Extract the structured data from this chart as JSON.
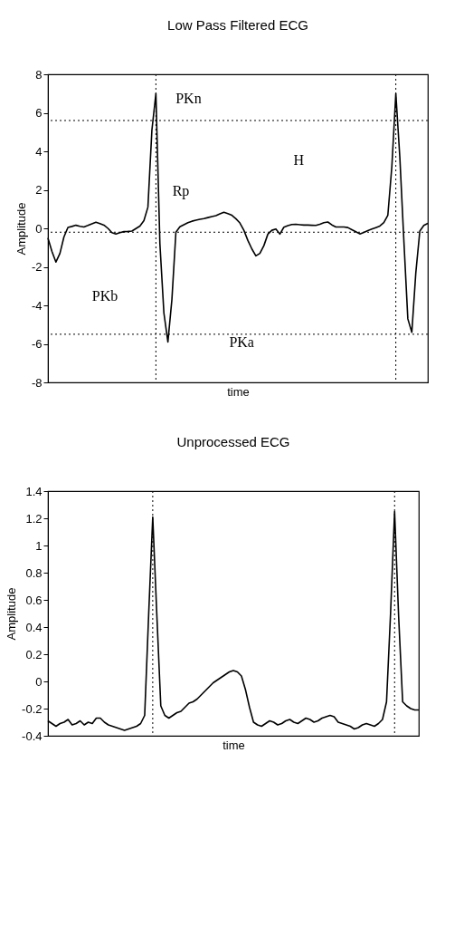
{
  "chart_data": [
    {
      "type": "line",
      "title": "Low Pass Filtered ECG",
      "xlabel": "time",
      "ylabel": "Amplitude",
      "tick_labels": "y",
      "grid": false,
      "marker": "none",
      "line_style": "solid",
      "categories": [
        null,
        null,
        null,
        null,
        null,
        null,
        null,
        null,
        null,
        null,
        null,
        null,
        null,
        null,
        null,
        null,
        null,
        null,
        null,
        null,
        null,
        null,
        null,
        null,
        null,
        null,
        null,
        null,
        null,
        null,
        null,
        null,
        null,
        null,
        null,
        null,
        null,
        null,
        null,
        null,
        null,
        null,
        null,
        null,
        null,
        null,
        null,
        null,
        null,
        null,
        null,
        null,
        null,
        null,
        null,
        null,
        null,
        null,
        null,
        null,
        null,
        null,
        null,
        null,
        null,
        null,
        null,
        null,
        null,
        null,
        null,
        null,
        null,
        null,
        null,
        null,
        null,
        null,
        null,
        null,
        null,
        null,
        null,
        null,
        null,
        null,
        null,
        null,
        null,
        null,
        null,
        null,
        null,
        null,
        null,
        null
      ],
      "ylim": [
        -8,
        8
      ],
      "yticks": [
        -8,
        -6,
        -4,
        -2,
        0,
        2,
        4,
        6,
        8
      ],
      "series": [
        {
          "color": "#000000",
          "values": [
            -0.5,
            -1.2,
            -1.75,
            -1.3,
            -0.45,
            0.05,
            0.1,
            0.16,
            0.11,
            0.07,
            0.15,
            0.24,
            0.32,
            0.25,
            0.17,
            0.0,
            -0.22,
            -0.29,
            -0.22,
            -0.17,
            -0.16,
            -0.14,
            -0.01,
            0.12,
            0.4,
            1.1,
            5.1,
            7.0,
            -0.8,
            -4.4,
            -5.9,
            -3.7,
            -0.2,
            0.08,
            0.19,
            0.29,
            0.37,
            0.42,
            0.47,
            0.51,
            0.56,
            0.61,
            0.66,
            0.75,
            0.83,
            0.76,
            0.68,
            0.5,
            0.28,
            -0.1,
            -0.63,
            -1.07,
            -1.43,
            -1.3,
            -0.9,
            -0.3,
            -0.1,
            -0.03,
            -0.3,
            0.06,
            0.14,
            0.2,
            0.21,
            0.19,
            0.17,
            0.17,
            0.16,
            0.15,
            0.21,
            0.29,
            0.33,
            0.18,
            0.07,
            0.07,
            0.07,
            0.04,
            -0.07,
            -0.18,
            -0.29,
            -0.21,
            -0.12,
            -0.04,
            0.04,
            0.12,
            0.3,
            0.68,
            3.2,
            7.0,
            3.7,
            -0.6,
            -4.7,
            -5.4,
            -2.3,
            -0.14,
            0.15,
            0.26
          ]
        }
      ],
      "ref_lines": [
        {
          "axis": "y",
          "value": 5.6,
          "line_style": "dotted"
        },
        {
          "axis": "y",
          "value": -0.2,
          "line_style": "dotted"
        },
        {
          "axis": "y",
          "value": -5.5,
          "line_style": "dotted"
        }
      ],
      "annotations": [
        "PKn",
        "Rp",
        "H",
        "PKb",
        "PKa"
      ]
    },
    {
      "type": "line",
      "title": "Unprocessed ECG",
      "xlabel": "time",
      "ylabel": "Amplitude",
      "tick_labels": "y",
      "grid": false,
      "marker": "none",
      "line_style": "solid",
      "categories": [
        null,
        null,
        null,
        null,
        null,
        null,
        null,
        null,
        null,
        null,
        null,
        null,
        null,
        null,
        null,
        null,
        null,
        null,
        null,
        null,
        null,
        null,
        null,
        null,
        null,
        null,
        null,
        null,
        null,
        null,
        null,
        null,
        null,
        null,
        null,
        null,
        null,
        null,
        null,
        null,
        null,
        null,
        null,
        null,
        null,
        null,
        null,
        null,
        null,
        null,
        null,
        null,
        null,
        null,
        null,
        null,
        null,
        null,
        null,
        null,
        null,
        null,
        null,
        null,
        null,
        null,
        null,
        null,
        null,
        null,
        null,
        null,
        null,
        null,
        null,
        null,
        null,
        null,
        null,
        null,
        null,
        null,
        null,
        null,
        null,
        null,
        null,
        null,
        null,
        null,
        null,
        null,
        null
      ],
      "ylim": [
        -0.4,
        1.4
      ],
      "yticks": [
        -0.4,
        -0.2,
        0,
        0.2,
        0.4,
        0.6,
        0.8,
        1,
        1.2,
        1.4
      ],
      "series": [
        {
          "color": "#000000",
          "values": [
            -0.29,
            -0.31,
            -0.33,
            -0.31,
            -0.3,
            -0.28,
            -0.32,
            -0.31,
            -0.29,
            -0.32,
            -0.3,
            -0.31,
            -0.27,
            -0.27,
            -0.3,
            -0.32,
            -0.33,
            -0.34,
            -0.35,
            -0.36,
            -0.35,
            -0.34,
            -0.33,
            -0.31,
            -0.25,
            0.5,
            1.21,
            0.5,
            -0.18,
            -0.25,
            -0.27,
            -0.25,
            -0.23,
            -0.22,
            -0.19,
            -0.16,
            -0.15,
            -0.13,
            -0.1,
            -0.07,
            -0.04,
            -0.01,
            0.01,
            0.03,
            0.05,
            0.07,
            0.08,
            0.07,
            0.04,
            -0.06,
            -0.19,
            -0.3,
            -0.32,
            -0.33,
            -0.31,
            -0.29,
            -0.3,
            -0.32,
            -0.31,
            -0.29,
            -0.28,
            -0.3,
            -0.31,
            -0.29,
            -0.27,
            -0.28,
            -0.3,
            -0.29,
            -0.27,
            -0.26,
            -0.25,
            -0.26,
            -0.3,
            -0.31,
            -0.32,
            -0.33,
            -0.35,
            -0.34,
            -0.32,
            -0.31,
            -0.32,
            -0.33,
            -0.31,
            -0.28,
            -0.15,
            0.5,
            1.25,
            0.48,
            -0.15,
            -0.18,
            -0.2,
            -0.21,
            -0.21
          ]
        }
      ]
    }
  ]
}
